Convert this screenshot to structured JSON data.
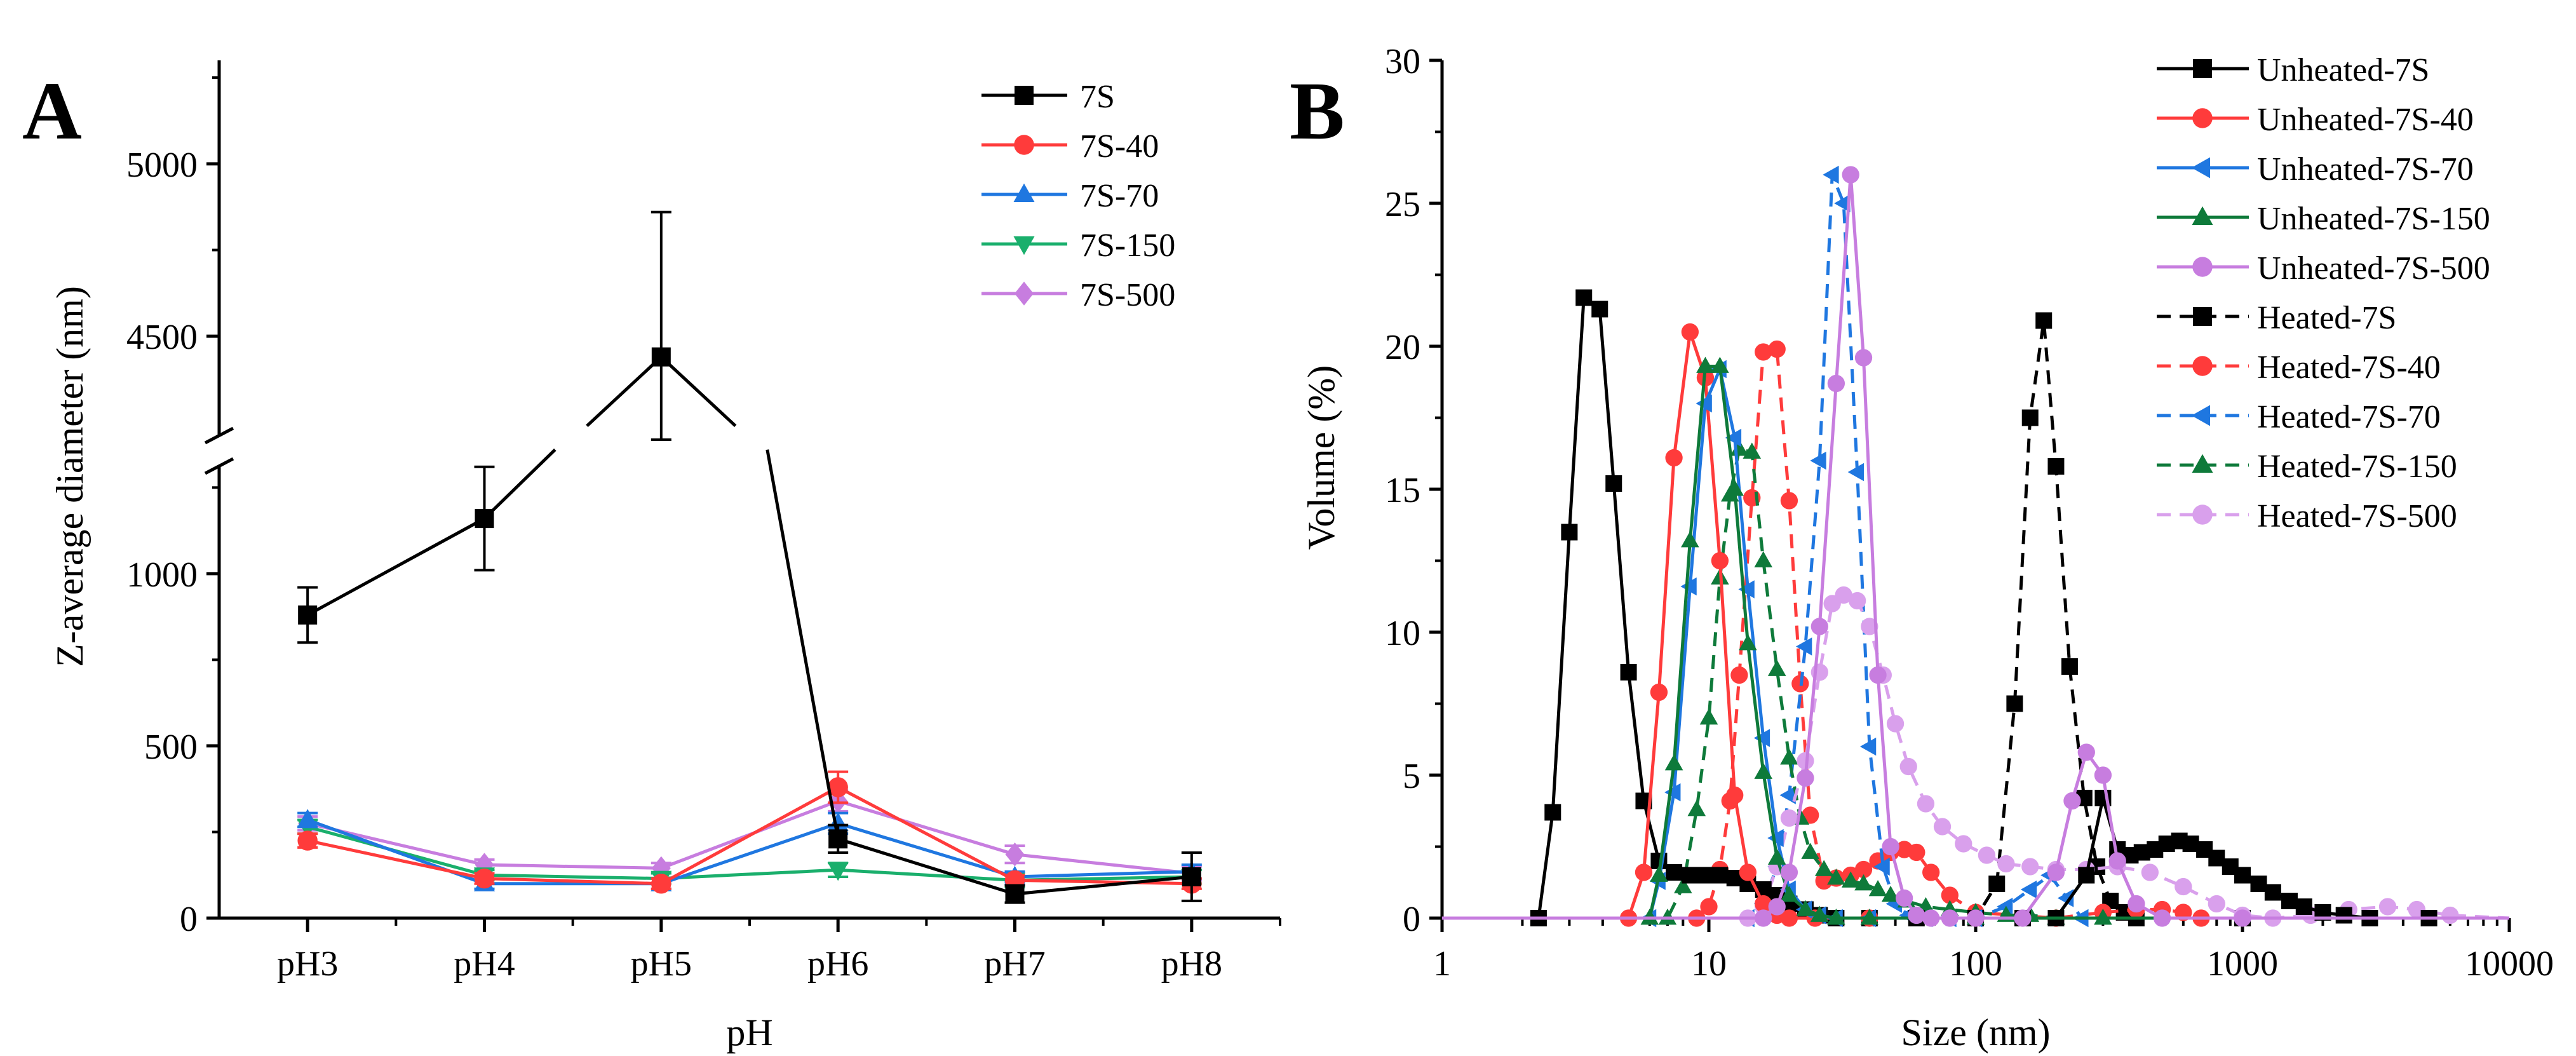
{
  "chart_data": [
    {
      "panel": "A",
      "type": "line",
      "xlabel": "pH",
      "ylabel": "Z-average diameter (nm)",
      "categories": [
        "pH3",
        "pH4",
        "pH5",
        "pH6",
        "pH7",
        "pH8"
      ],
      "y_axis": {
        "broken": true,
        "lower_range": [
          0,
          1400
        ],
        "upper_range": [
          4200,
          5300
        ],
        "lower_ticks": [
          0,
          500,
          1000
        ],
        "upper_ticks": [
          4500,
          5000
        ]
      },
      "legend_position": "top-right",
      "series": [
        {
          "name": "7S",
          "color": "#000000",
          "marker": "square",
          "values": [
            880,
            1160,
            4440,
            230,
            70,
            120
          ],
          "errors": [
            80,
            150,
            420,
            40,
            25,
            70
          ]
        },
        {
          "name": "7S-40",
          "color": "#ff3b3b",
          "marker": "circle",
          "values": [
            225,
            115,
            100,
            380,
            110,
            100
          ],
          "errors": [
            20,
            15,
            15,
            45,
            15,
            15
          ]
        },
        {
          "name": "7S-70",
          "color": "#1f77e0",
          "marker": "triangle-up",
          "values": [
            285,
            100,
            100,
            275,
            120,
            135
          ],
          "errors": [
            20,
            15,
            15,
            30,
            15,
            20
          ]
        },
        {
          "name": "7S-150",
          "color": "#1aaf6c",
          "marker": "triangle-down",
          "values": [
            265,
            125,
            115,
            140,
            110,
            120
          ],
          "errors": [
            20,
            15,
            15,
            20,
            20,
            20
          ]
        },
        {
          "name": "7S-500",
          "color": "#c77ddf",
          "marker": "diamond",
          "values": [
            275,
            155,
            145,
            340,
            185,
            130
          ],
          "errors": [
            20,
            15,
            15,
            30,
            25,
            20
          ]
        }
      ]
    },
    {
      "panel": "B",
      "type": "line",
      "xscale": "log",
      "xlabel": "Size (nm)",
      "ylabel": "Volume (%)",
      "xlim": [
        1,
        10000
      ],
      "ylim": [
        0,
        30
      ],
      "x_ticks": [
        1,
        10,
        100,
        1000,
        10000
      ],
      "x_tick_labels": [
        "1",
        "10",
        "100",
        "1000",
        "10000"
      ],
      "y_ticks": [
        0,
        5,
        10,
        15,
        20,
        25,
        30
      ],
      "legend_position": "top-right",
      "series": [
        {
          "name": "Unheated-7S",
          "color": "#000000",
          "marker": "square",
          "dashed": false,
          "x": [
            1,
            2.3,
            2.6,
            3.0,
            3.4,
            3.9,
            4.4,
            5.0,
            5.7,
            6.5,
            7.4,
            8.5,
            9.7,
            11,
            12.5,
            14,
            16,
            18,
            20,
            23,
            26,
            30,
            40,
            60,
            100,
            150,
            200,
            260,
            300,
            340,
            380,
            420,
            470,
            520,
            580,
            640,
            720,
            800,
            900,
            1000,
            1150,
            1300,
            1500,
            1700,
            2000,
            2400,
            3000,
            5000,
            10000
          ],
          "y": [
            0,
            0,
            3.7,
            13.5,
            21.7,
            21.3,
            15.2,
            8.6,
            4.1,
            2.0,
            1.6,
            1.5,
            1.5,
            1.5,
            1.4,
            1.2,
            1.0,
            0.8,
            0.5,
            0.3,
            0.1,
            0,
            0,
            0,
            0,
            0,
            0,
            1.5,
            4.2,
            2.4,
            2.2,
            2.3,
            2.4,
            2.6,
            2.7,
            2.6,
            2.4,
            2.1,
            1.8,
            1.5,
            1.2,
            0.9,
            0.6,
            0.4,
            0.2,
            0.1,
            0,
            0,
            0
          ]
        },
        {
          "name": "Unheated-7S-40",
          "color": "#ff3b3b",
          "marker": "circle",
          "dashed": false,
          "x": [
            1,
            5.0,
            5.7,
            6.5,
            7.4,
            8.5,
            9.7,
            11,
            12.5,
            14,
            16,
            18,
            20,
            25,
            40,
            100,
            10000
          ],
          "y": [
            0,
            0,
            1.6,
            7.9,
            16.1,
            20.5,
            18.9,
            12.5,
            4.3,
            1.6,
            0.5,
            0.1,
            0,
            0,
            0,
            0,
            0
          ]
        },
        {
          "name": "Unheated-7S-70",
          "color": "#1f77e0",
          "marker": "triangle-left",
          "dashed": false,
          "x": [
            1,
            6.0,
            6.5,
            7.4,
            8.5,
            9.7,
            11,
            12.5,
            14,
            16,
            18,
            20,
            23,
            26,
            30,
            40,
            100,
            10000
          ],
          "y": [
            0,
            0,
            1.3,
            4.4,
            11.6,
            18.0,
            19.2,
            16.8,
            11.5,
            6.3,
            2.8,
            1.0,
            0.3,
            0.1,
            0,
            0,
            0,
            0
          ]
        },
        {
          "name": "Unheated-7S-150",
          "color": "#0e7a3a",
          "marker": "triangle-up",
          "dashed": false,
          "x": [
            1,
            6.0,
            6.5,
            7.4,
            8.5,
            9.7,
            11,
            12.5,
            14,
            16,
            18,
            20,
            23,
            26,
            30,
            40,
            100,
            10000
          ],
          "y": [
            0,
            0,
            1.5,
            5.4,
            13.2,
            19.3,
            19.3,
            15.0,
            9.6,
            5.1,
            2.1,
            0.8,
            0.3,
            0.1,
            0,
            0,
            0,
            0
          ]
        },
        {
          "name": "Unheated-7S-500",
          "color": "#c77ddf",
          "marker": "circle",
          "dashed": false,
          "x": [
            1,
            16,
            18,
            20,
            23,
            26,
            30,
            34,
            38,
            43,
            48,
            54,
            60,
            68,
            80,
            100,
            150,
            200,
            230,
            260,
            300,
            340,
            400,
            500,
            1000,
            10000
          ],
          "y": [
            0,
            0,
            0.4,
            1.6,
            4.9,
            10.2,
            18.7,
            26.0,
            19.6,
            8.5,
            2.5,
            0.7,
            0.1,
            0,
            0,
            0,
            0,
            1.6,
            4.1,
            5.8,
            5.0,
            2.0,
            0.5,
            0,
            0,
            0
          ]
        },
        {
          "name": "Heated-7S",
          "color": "#000000",
          "marker": "square",
          "dashed": true,
          "x": [
            1,
            100,
            120,
            140,
            160,
            180,
            200,
            225,
            255,
            285,
            320,
            360,
            400,
            1000,
            10000
          ],
          "y": [
            0,
            0,
            1.2,
            7.5,
            17.5,
            20.9,
            15.8,
            8.8,
            4.2,
            1.8,
            0.6,
            0.2,
            0,
            0,
            0
          ]
        },
        {
          "name": "Heated-7S-40",
          "color": "#ff3b3b",
          "marker": "circle",
          "dashed": true,
          "x": [
            1,
            9,
            10,
            11,
            12,
            13,
            14.5,
            16,
            18,
            20,
            22,
            24,
            27,
            30,
            34,
            38,
            43,
            48,
            54,
            60,
            68,
            80,
            100,
            200,
            300,
            400,
            500,
            600,
            700,
            10000
          ],
          "y": [
            0,
            0,
            0.4,
            1.7,
            4.1,
            8.5,
            14.7,
            19.8,
            19.9,
            14.6,
            8.2,
            3.6,
            1.3,
            1.4,
            1.5,
            1.7,
            2.0,
            2.3,
            2.4,
            2.3,
            1.6,
            0.8,
            0.2,
            0,
            0.2,
            0.3,
            0.3,
            0.2,
            0,
            0
          ]
        },
        {
          "name": "Heated-7S-70",
          "color": "#1f77e0",
          "marker": "triangle-left",
          "dashed": true,
          "x": [
            1,
            14,
            16,
            18,
            20,
            23,
            26,
            29,
            32,
            36,
            40,
            45,
            50,
            56,
            65,
            80,
            100,
            130,
            160,
            190,
            220,
            250,
            10000
          ],
          "y": [
            0,
            0,
            0.5,
            1.8,
            4.3,
            9.5,
            16.0,
            26.0,
            25.0,
            15.6,
            6.0,
            1.8,
            0.5,
            0.1,
            0,
            0,
            0,
            0.4,
            1.0,
            1.5,
            0.7,
            0,
            0
          ]
        },
        {
          "name": "Heated-7S-150",
          "color": "#0e7a3a",
          "marker": "triangle-up",
          "dashed": true,
          "x": [
            1,
            7,
            8,
            9,
            10,
            11,
            12,
            13,
            14.5,
            16,
            18,
            20,
            22,
            24,
            27,
            30,
            34,
            38,
            43,
            48,
            55,
            65,
            80,
            100,
            130,
            160,
            200,
            300,
            10000
          ],
          "y": [
            0,
            0,
            1.1,
            3.8,
            7.0,
            11.9,
            14.8,
            16.4,
            16.3,
            12.5,
            8.7,
            5.6,
            3.5,
            2.3,
            1.7,
            1.4,
            1.3,
            1.2,
            1.0,
            0.8,
            0.6,
            0.4,
            0.3,
            0.2,
            0.1,
            0.1,
            0,
            0,
            0
          ]
        },
        {
          "name": "Heated-7S-500",
          "color": "#d9a0ec",
          "marker": "circle",
          "dashed": true,
          "x": [
            1,
            14,
            16,
            18,
            20,
            23,
            26,
            29,
            32,
            36,
            40,
            45,
            50,
            56,
            65,
            75,
            90,
            110,
            130,
            160,
            200,
            260,
            340,
            450,
            600,
            800,
            1000,
            1300,
            1800,
            2500,
            3500,
            4500,
            6000,
            10000
          ],
          "y": [
            0,
            0,
            0.4,
            1.8,
            3.5,
            5.5,
            8.6,
            11.0,
            11.3,
            11.1,
            10.2,
            8.5,
            6.8,
            5.3,
            4.0,
            3.2,
            2.6,
            2.2,
            1.9,
            1.8,
            1.7,
            1.7,
            1.8,
            1.6,
            1.1,
            0.5,
            0.1,
            0,
            0.1,
            0.3,
            0.4,
            0.3,
            0.1,
            0
          ]
        }
      ]
    }
  ]
}
